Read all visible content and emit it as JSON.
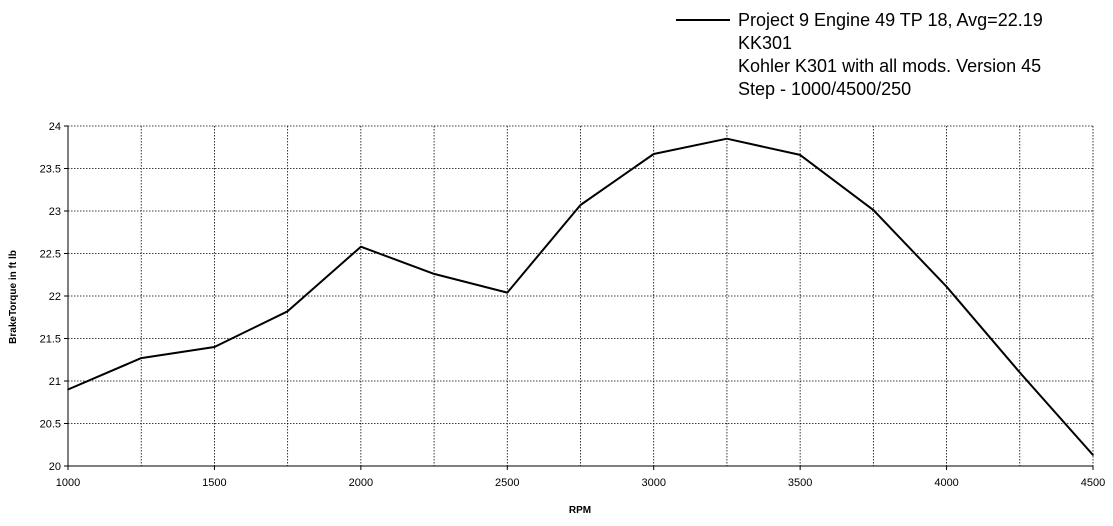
{
  "chart_data": {
    "type": "line",
    "title": "",
    "xlabel": "RPM",
    "ylabel": "BrakeTorque in ft lb",
    "xlim": [
      1000,
      4500
    ],
    "ylim": [
      20,
      24
    ],
    "x_ticks": [
      1000,
      1500,
      2000,
      2500,
      3000,
      3500,
      4000,
      4500
    ],
    "y_ticks": [
      20,
      20.5,
      21,
      21.5,
      22,
      22.5,
      23,
      23.5,
      24
    ],
    "x_minor_grid": [
      1250,
      1750,
      2250,
      2750,
      3250,
      3750,
      4250
    ],
    "grid": true,
    "legend_position": "top-right",
    "legend_lines": [
      "Project 9 Engine 49 TP 18, Avg=22.19",
      "KK301",
      "Kohler K301 with all mods. Version 45",
      "Step - 1000/4500/250"
    ],
    "series": [
      {
        "color": "#000000",
        "x": [
          1000,
          1250,
          1500,
          1750,
          2000,
          2250,
          2500,
          2750,
          3000,
          3250,
          3500,
          3750,
          4000,
          4250,
          4500
        ],
        "values": [
          20.9,
          21.27,
          21.4,
          21.82,
          22.58,
          22.26,
          22.04,
          23.07,
          23.67,
          23.85,
          23.66,
          23.01,
          22.11,
          21.1,
          20.13
        ]
      }
    ]
  }
}
